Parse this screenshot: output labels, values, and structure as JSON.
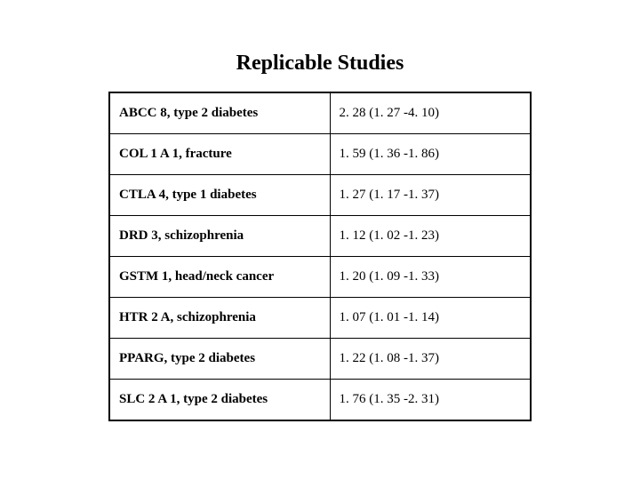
{
  "title": "Replicable Studies",
  "table": {
    "rows": [
      {
        "gene": "ABCC 8, type 2 diabetes",
        "value": "2. 28 (1. 27 -4. 10)"
      },
      {
        "gene": "COL 1 A 1, fracture",
        "value": "1. 59 (1. 36 -1. 86)"
      },
      {
        "gene": "CTLA 4, type 1 diabetes",
        "value": "1. 27 (1. 17 -1. 37)"
      },
      {
        "gene": "DRD 3, schizophrenia",
        "value": "1. 12 (1. 02 -1. 23)"
      },
      {
        "gene": "GSTM 1, head/neck cancer",
        "value": "1. 20 (1. 09 -1. 33)"
      },
      {
        "gene": "HTR 2 A, schizophrenia",
        "value": "1. 07 (1. 01 -1. 14)"
      },
      {
        "gene": "PPARG, type 2 diabetes",
        "value": "1. 22 (1. 08 -1. 37)"
      },
      {
        "gene": "SLC 2 A 1, type 2 diabetes",
        "value": "1. 76 (1. 35 -2. 31)"
      }
    ],
    "col_widths": [
      "248px",
      "226px"
    ],
    "border_color": "#000000",
    "background_color": "#ffffff",
    "font_family": "Times New Roman",
    "title_fontsize": 24,
    "cell_fontsize": 15
  }
}
